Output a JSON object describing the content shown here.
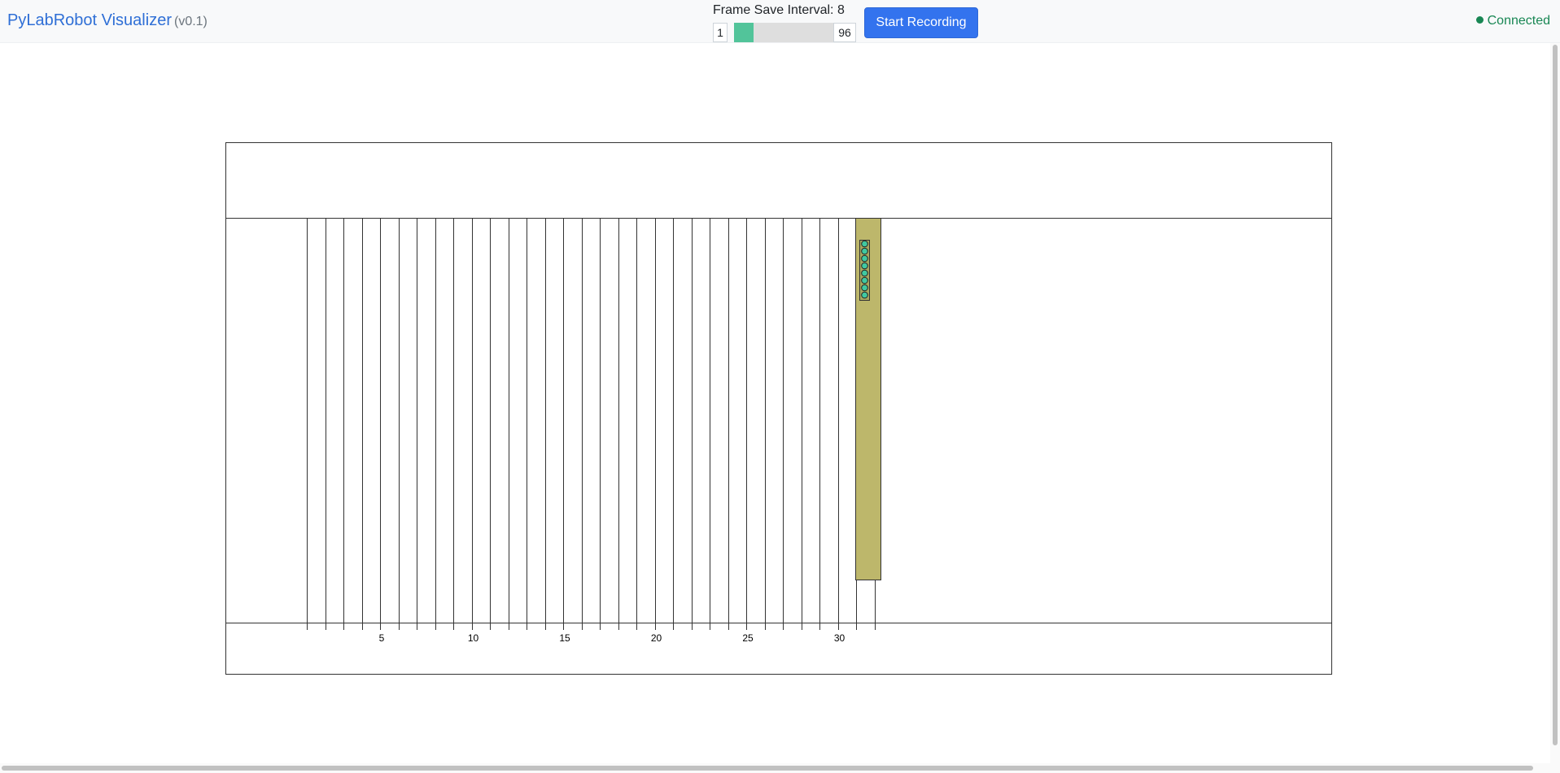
{
  "app": {
    "title": "PyLabRobot Visualizer",
    "version": "(v0.1)"
  },
  "recording": {
    "interval_label": "Frame Save Interval:",
    "interval_value": "8",
    "slider_min": "1",
    "slider_max": "96",
    "slider_fraction": 0.2,
    "button_label": "Start Recording"
  },
  "connection": {
    "status": "Connected",
    "color": "#198754"
  },
  "deck": {
    "rail_count": 32,
    "rail_labels": [
      "5",
      "10",
      "15",
      "20",
      "25",
      "30"
    ],
    "carrier_color": "#bdb76b",
    "tip_color": "#40c8a0",
    "tip_count": 8
  },
  "colors": {
    "brand": "#2f6fd6",
    "primary_button": "#3373ee",
    "slider_fill": "#52c49a"
  }
}
